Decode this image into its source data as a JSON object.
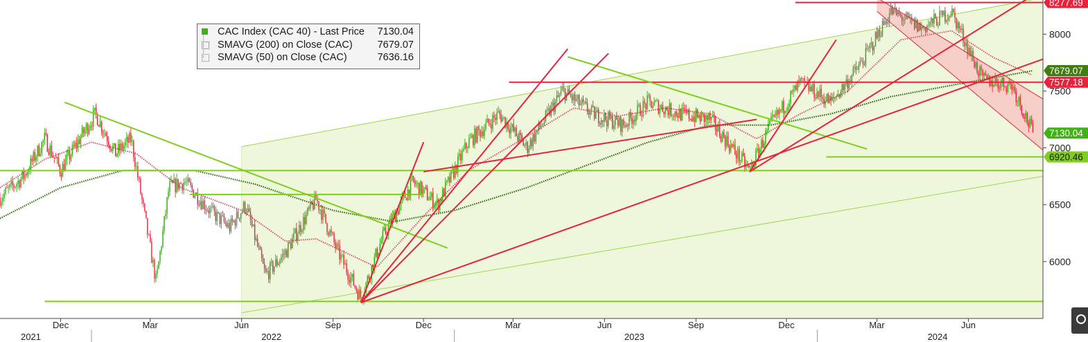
{
  "legend": {
    "rows": [
      {
        "name": "CAC Index (CAC 40) - Last Price",
        "value": "7130.04",
        "color": "#3fb312"
      },
      {
        "name": "SMAVG (200)  on Close (CAC)",
        "value": "7679.07",
        "color": "#2f6e0a"
      },
      {
        "name": "SMAVG (50)  on Close (CAC)",
        "value": "7636.16",
        "color": "#e2425c"
      }
    ]
  },
  "chart_data": {
    "type": "line",
    "title": "",
    "xlabel": "",
    "ylabel": "",
    "ylim": [
      5500,
      8300
    ],
    "yticks": [
      6000,
      6500,
      7000,
      7500,
      8000
    ],
    "x_months": [
      {
        "label": "Dec",
        "date": "2021-12-01"
      },
      {
        "label": "Mar",
        "date": "2022-03-01"
      },
      {
        "label": "Jun",
        "date": "2022-06-01"
      },
      {
        "label": "Sep",
        "date": "2022-09-01"
      },
      {
        "label": "Dec",
        "date": "2022-12-01"
      },
      {
        "label": "Mar",
        "date": "2023-03-01"
      },
      {
        "label": "Jun",
        "date": "2023-06-01"
      },
      {
        "label": "Sep",
        "date": "2023-09-01"
      },
      {
        "label": "Dec",
        "date": "2023-12-01"
      },
      {
        "label": "Mar",
        "date": "2024-03-01"
      },
      {
        "label": "Jun",
        "date": "2024-06-01"
      }
    ],
    "x_years": [
      {
        "label": "2021",
        "date": "2021-11-01"
      },
      {
        "label": "2022",
        "date": "2022-07-01"
      },
      {
        "label": "2023",
        "date": "2023-07-01"
      },
      {
        "label": "2024",
        "date": "2024-05-01"
      }
    ],
    "x_range": [
      "2021-10-01",
      "2024-08-15"
    ],
    "price_path": [
      [
        "2021-10-01",
        6560
      ],
      [
        "2021-10-25",
        6750
      ],
      [
        "2021-11-15",
        7080
      ],
      [
        "2021-12-01",
        6800
      ],
      [
        "2021-12-20",
        7080
      ],
      [
        "2022-01-05",
        7300
      ],
      [
        "2022-01-25",
        6950
      ],
      [
        "2022-02-10",
        7080
      ],
      [
        "2022-03-07",
        5820
      ],
      [
        "2022-03-20",
        6650
      ],
      [
        "2022-04-05",
        6700
      ],
      [
        "2022-05-01",
        6440
      ],
      [
        "2022-05-20",
        6300
      ],
      [
        "2022-06-05",
        6500
      ],
      [
        "2022-06-25",
        5880
      ],
      [
        "2022-07-15",
        6080
      ],
      [
        "2022-08-15",
        6550
      ],
      [
        "2022-09-05",
        6100
      ],
      [
        "2022-09-29",
        5680
      ],
      [
        "2022-10-20",
        6200
      ],
      [
        "2022-11-20",
        6700
      ],
      [
        "2022-12-15",
        6500
      ],
      [
        "2023-01-15",
        7050
      ],
      [
        "2023-02-15",
        7300
      ],
      [
        "2023-03-15",
        7000
      ],
      [
        "2023-04-20",
        7500
      ],
      [
        "2023-05-20",
        7300
      ],
      [
        "2023-06-20",
        7200
      ],
      [
        "2023-07-15",
        7400
      ],
      [
        "2023-08-15",
        7300
      ],
      [
        "2023-09-15",
        7250
      ],
      [
        "2023-10-25",
        6800
      ],
      [
        "2023-11-15",
        7200
      ],
      [
        "2023-12-15",
        7570
      ],
      [
        "2024-01-15",
        7400
      ],
      [
        "2024-02-15",
        7750
      ],
      [
        "2024-03-15",
        8200
      ],
      [
        "2024-04-15",
        8050
      ],
      [
        "2024-05-15",
        8200
      ],
      [
        "2024-06-15",
        7600
      ],
      [
        "2024-07-15",
        7550
      ],
      [
        "2024-08-05",
        7130
      ]
    ],
    "sma200_path": [
      [
        "2021-10-01",
        6380
      ],
      [
        "2021-12-01",
        6650
      ],
      [
        "2022-02-01",
        6800
      ],
      [
        "2022-04-15",
        6800
      ],
      [
        "2022-06-15",
        6680
      ],
      [
        "2022-09-01",
        6450
      ],
      [
        "2022-11-01",
        6350
      ],
      [
        "2023-01-01",
        6450
      ],
      [
        "2023-03-15",
        6650
      ],
      [
        "2023-05-15",
        6850
      ],
      [
        "2023-07-15",
        7050
      ],
      [
        "2023-09-15",
        7200
      ],
      [
        "2023-11-15",
        7200
      ],
      [
        "2024-01-15",
        7300
      ],
      [
        "2024-03-15",
        7450
      ],
      [
        "2024-05-15",
        7550
      ],
      [
        "2024-08-05",
        7679.07
      ]
    ],
    "sma50_path": [
      [
        "2021-10-01",
        6650
      ],
      [
        "2021-11-15",
        6900
      ],
      [
        "2022-01-01",
        7050
      ],
      [
        "2022-02-15",
        6950
      ],
      [
        "2022-04-01",
        6650
      ],
      [
        "2022-06-01",
        6450
      ],
      [
        "2022-07-15",
        6180
      ],
      [
        "2022-08-15",
        6200
      ],
      [
        "2022-10-15",
        5950
      ],
      [
        "2022-12-01",
        6400
      ],
      [
        "2023-01-15",
        6800
      ],
      [
        "2023-03-15",
        7100
      ],
      [
        "2023-05-01",
        7350
      ],
      [
        "2023-06-15",
        7280
      ],
      [
        "2023-08-01",
        7350
      ],
      [
        "2023-09-15",
        7300
      ],
      [
        "2023-11-01",
        7080
      ],
      [
        "2023-12-15",
        7300
      ],
      [
        "2024-02-01",
        7500
      ],
      [
        "2024-03-25",
        7950
      ],
      [
        "2024-05-15",
        8030
      ],
      [
        "2024-06-25",
        7800
      ],
      [
        "2024-08-05",
        7636.16
      ]
    ],
    "horizontal_lines": [
      {
        "color": "#e8223b",
        "y": 8277.69,
        "from": "2023-12-10",
        "to": "2024-08-15"
      },
      {
        "color": "#e8223b",
        "y": 7577.18,
        "from": "2023-02-25",
        "to": "2024-08-15"
      },
      {
        "color": "#7fcf1a",
        "y": 6920.46,
        "from": "2024-01-10",
        "to": "2024-08-15"
      },
      {
        "color": "#7fcf1a",
        "y": 6800,
        "from": "2021-10-01",
        "to": "2024-08-15"
      },
      {
        "color": "#7fcf1a",
        "y": 6590,
        "from": "2022-04-10",
        "to": "2022-12-01"
      },
      {
        "color": "#7fcf1a",
        "y": 5650,
        "from": "2021-11-15",
        "to": "2024-08-15"
      }
    ],
    "trend_lines": [
      {
        "color": "#7fcf1a",
        "from": [
          "2021-12-05",
          7400
        ],
        "to": [
          "2022-12-25",
          6120
        ]
      },
      {
        "color": "#7fcf1a",
        "from": [
          "2023-04-25",
          7800
        ],
        "to": [
          "2024-02-20",
          6990
        ]
      },
      {
        "color": "#e8223b",
        "from": [
          "2022-09-29",
          5640
        ],
        "to": [
          "2022-12-01",
          7050
        ]
      },
      {
        "color": "#e8223b",
        "from": [
          "2022-09-29",
          5640
        ],
        "to": [
          "2023-04-25",
          7870
        ]
      },
      {
        "color": "#e8223b",
        "from": [
          "2022-09-29",
          5640
        ],
        "to": [
          "2023-06-05",
          7830
        ]
      },
      {
        "color": "#e8223b",
        "from": [
          "2022-09-29",
          5640
        ],
        "to": [
          "2024-08-15",
          7780
        ]
      },
      {
        "color": "#e8223b",
        "from": [
          "2022-12-01",
          6790
        ],
        "to": [
          "2023-11-01",
          7250
        ]
      },
      {
        "color": "#e8223b",
        "from": [
          "2023-10-25",
          6790
        ],
        "to": [
          "2024-08-01",
          8320
        ]
      },
      {
        "color": "#e8223b",
        "from": [
          "2023-10-25",
          6790
        ],
        "to": [
          "2024-01-20",
          7950
        ]
      }
    ],
    "channel_green": {
      "start": "2022-06-01",
      "end": "2024-08-15",
      "top": [
        [
          "2022-06-01",
          7010
        ],
        [
          "2024-08-15",
          8320
        ]
      ],
      "bottom": [
        [
          "2022-06-01",
          5550
        ],
        [
          "2024-08-15",
          6750
        ]
      ]
    },
    "channel_red": {
      "top": [
        [
          "2024-03-01",
          8320
        ],
        [
          "2024-08-15",
          7430
        ]
      ],
      "bottom": [
        [
          "2024-03-01",
          8200
        ],
        [
          "2024-08-15",
          6980
        ]
      ]
    },
    "price_labels": [
      {
        "text": "8277.69",
        "y": 8277.69,
        "bg": "#e8223b",
        "fg": "#ffffff"
      },
      {
        "text": "7679.07",
        "y": 7679.07,
        "bg": "#3f7d0e",
        "fg": "#ffffff"
      },
      {
        "text": "7577.18",
        "y": 7577.18,
        "bg": "#e8223b",
        "fg": "#ffffff"
      },
      {
        "text": "7130.04",
        "y": 7130.04,
        "bg": "#3fb312",
        "fg": "#ffffff"
      },
      {
        "text": "6920.46",
        "y": 6920.46,
        "bg": "#7fcf1a",
        "fg": "#1a1a1a"
      }
    ]
  }
}
